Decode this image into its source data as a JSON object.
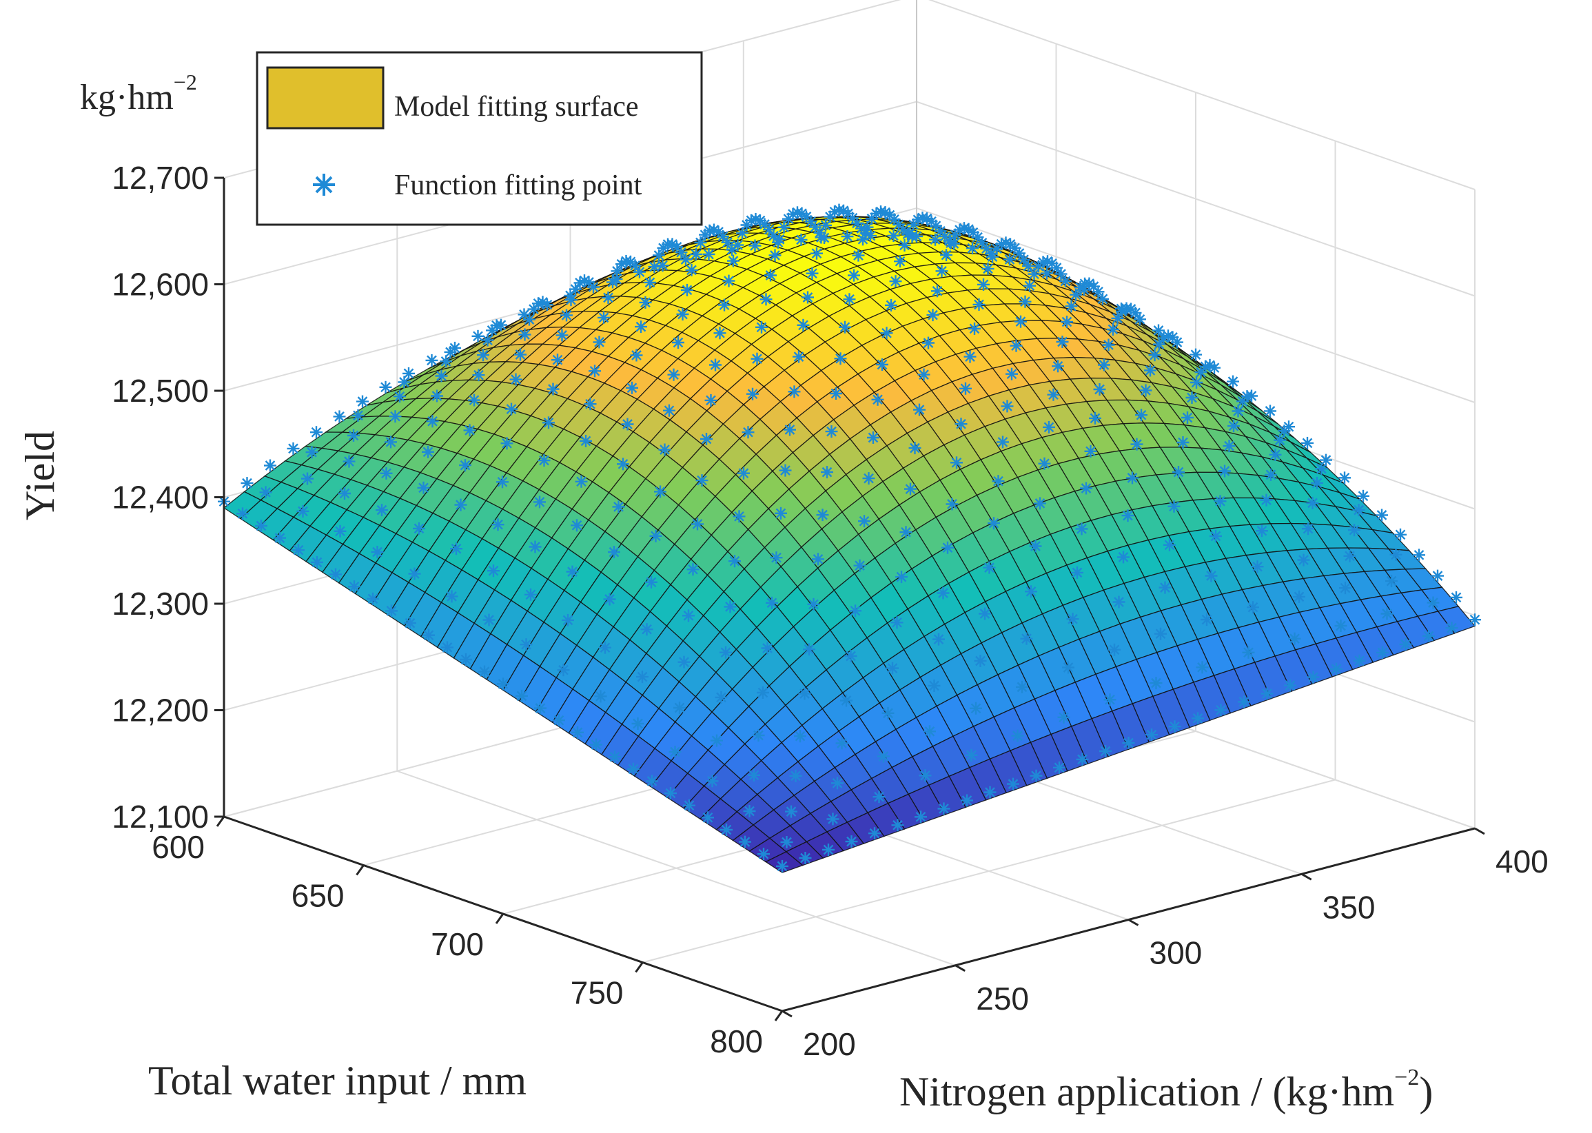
{
  "chart_data": {
    "type": "surface3d",
    "title": "",
    "x_axis": {
      "label": "Total water input / mm",
      "range": [
        600,
        800
      ],
      "ticks": [
        600,
        650,
        700,
        750,
        800
      ],
      "tick_labels": [
        "600",
        "650",
        "700",
        "750",
        "800"
      ]
    },
    "y_axis": {
      "label": "Nitrogen application / (kg·hm",
      "label_sup": "−2",
      "label_close": ")",
      "range": [
        200,
        400
      ],
      "ticks": [
        200,
        250,
        300,
        350,
        400
      ],
      "tick_labels": [
        "200",
        "250",
        "300",
        "350",
        "400"
      ]
    },
    "z_axis": {
      "label": "Yield",
      "unit": "kg·hm",
      "unit_sup": "−2",
      "range": [
        12100,
        12700
      ],
      "ticks": [
        12100,
        12200,
        12300,
        12400,
        12500,
        12600,
        12700
      ],
      "tick_labels": [
        "12,100",
        "12,200",
        "12,300",
        "12,400",
        "12,500",
        "12,600",
        "12,700"
      ]
    },
    "legend": {
      "position": "top-left",
      "entries": [
        {
          "label": "Model fitting surface",
          "type": "surface",
          "color": "#e0bf2c"
        },
        {
          "label": "Function fitting point",
          "type": "marker",
          "marker": "asterisk",
          "color": "#0072bd"
        }
      ]
    },
    "surface_corners": [
      {
        "water": 600,
        "nitrogen": 200,
        "yield": 12390
      },
      {
        "water": 600,
        "nitrogen": 400,
        "yield": 12440
      },
      {
        "water": 800,
        "nitrogen": 200,
        "yield": 12230
      },
      {
        "water": 800,
        "nitrogen": 400,
        "yield": 12290
      }
    ],
    "peak": {
      "water": 690,
      "nitrogen": 310,
      "yield": 12600
    },
    "grid": true,
    "colormap": "parula"
  }
}
